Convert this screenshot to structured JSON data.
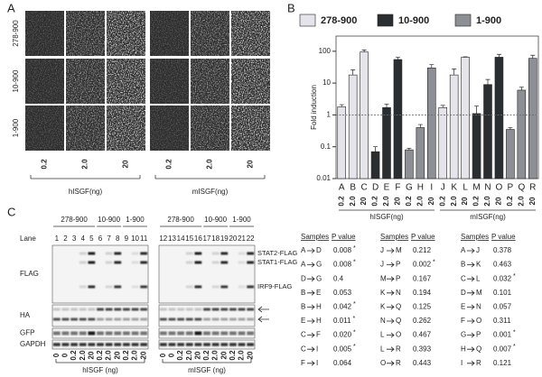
{
  "panel_a": {
    "label": "A",
    "rows": [
      "278-900",
      "10-900",
      "1-900"
    ],
    "doses": [
      "0.2",
      "2.0",
      "20"
    ],
    "groups": [
      "hISGF(ng)",
      "mISGF(ng)"
    ]
  },
  "chart_data": {
    "type": "bar",
    "label": "B",
    "ylabel": "Fold induction",
    "log_scale": true,
    "grid": false,
    "ylim": [
      0.01,
      300
    ],
    "yticks": [
      0.01,
      0.1,
      1,
      10,
      100
    ],
    "reference_line": 1,
    "categories": [
      "A",
      "B",
      "C",
      "D",
      "E",
      "F",
      "G",
      "H",
      "I",
      "J",
      "K",
      "L",
      "M",
      "N",
      "O",
      "P",
      "Q",
      "R"
    ],
    "dose_labels": [
      "0.2",
      "2.0",
      "20",
      "0.2",
      "2.0",
      "20",
      "0.2",
      "2.0",
      "20",
      "0.2",
      "2.0",
      "20",
      "0.2",
      "2.0",
      "20",
      "0.2",
      "2.0",
      "20"
    ],
    "groups": [
      "hISGF(ng)",
      "mISGF(ng)"
    ],
    "series": [
      {
        "name": "278-900",
        "color": "#e4e4ea",
        "values": [
          1.8,
          18,
          95,
          null,
          null,
          null,
          null,
          null,
          null,
          1.7,
          18,
          65,
          null,
          null,
          null,
          null,
          null,
          null
        ],
        "errors": [
          0.3,
          8,
          15,
          null,
          null,
          null,
          null,
          null,
          null,
          0.3,
          10,
          2,
          null,
          null,
          null,
          null,
          null,
          null
        ]
      },
      {
        "name": "10-900",
        "color": "#2b2e30",
        "values": [
          null,
          null,
          null,
          0.07,
          1.7,
          55,
          null,
          null,
          null,
          null,
          null,
          null,
          1.1,
          9,
          65,
          null,
          null,
          null
        ],
        "errors": [
          null,
          null,
          null,
          0.03,
          0.5,
          10,
          null,
          null,
          null,
          null,
          null,
          null,
          0.8,
          4,
          15,
          null,
          null,
          null
        ]
      },
      {
        "name": "1-900",
        "color": "#8c8f93",
        "values": [
          null,
          null,
          null,
          null,
          null,
          null,
          0.08,
          0.4,
          30,
          null,
          null,
          null,
          null,
          null,
          null,
          0.35,
          6,
          60
        ],
        "errors": [
          null,
          null,
          null,
          null,
          null,
          null,
          0.01,
          0.1,
          8,
          null,
          null,
          null,
          null,
          null,
          null,
          0.05,
          1.5,
          15
        ]
      }
    ]
  },
  "panel_c": {
    "label": "C",
    "lane_label": "Lane",
    "blots": [
      {
        "groups": [
          {
            "name": "278-900",
            "lanes": [
              1,
              2,
              3,
              4,
              5
            ]
          },
          {
            "name": "10-900",
            "lanes": [
              6,
              7,
              8
            ]
          },
          {
            "name": "1-900",
            "lanes": [
              9,
              10,
              11
            ]
          }
        ],
        "doses": [
          "0",
          "0",
          "0.2",
          "2.0",
          "20",
          "0.2",
          "2.0",
          "20",
          "0.2",
          "2.0",
          "20"
        ],
        "agent": "hISGF (ng)"
      },
      {
        "groups": [
          {
            "name": "278-900",
            "lanes": [
              12,
              13,
              14,
              15,
              16
            ]
          },
          {
            "name": "10-900",
            "lanes": [
              17,
              18,
              19
            ]
          },
          {
            "name": "1-900",
            "lanes": [
              20,
              21,
              22
            ]
          }
        ],
        "doses": [
          "0",
          "0",
          "0.2",
          "2.0",
          "20",
          "0.2",
          "2.0",
          "20",
          "0.2",
          "2.0",
          "20"
        ],
        "agent": "mISGF (ng)"
      }
    ],
    "rows": [
      "FLAG",
      "HA",
      "GFP",
      "GAPDH"
    ],
    "band_labels": [
      "STAT2-FLAG",
      "STAT1-FLAG",
      "IRF9-FLAG"
    ]
  },
  "table": {
    "headers": [
      "Samples",
      "P value"
    ],
    "columns": [
      [
        {
          "from": "A",
          "to": "D",
          "p": "0.008",
          "mark": "*"
        },
        {
          "from": "A",
          "to": "G",
          "p": "0.008",
          "mark": "*"
        },
        {
          "from": "D",
          "to": "G",
          "p": "0.4"
        },
        {
          "from": "B",
          "to": "E",
          "p": "0.053"
        },
        {
          "from": "B",
          "to": "H",
          "p": "0.042",
          "mark": "*"
        },
        {
          "from": "E",
          "to": "H",
          "p": "0.011",
          "mark": "*"
        },
        {
          "from": "C",
          "to": "F",
          "p": "0.020",
          "mark": "*"
        },
        {
          "from": "C",
          "to": "I",
          "p": "0.005",
          "mark": "*"
        },
        {
          "from": "F",
          "to": "I",
          "p": "0.064"
        }
      ],
      [
        {
          "from": "J",
          "to": "M",
          "p": "0.212"
        },
        {
          "from": "J",
          "to": "P",
          "p": "0.002",
          "mark": "*"
        },
        {
          "from": "M",
          "to": "P",
          "p": "0.167"
        },
        {
          "from": "K",
          "to": "N",
          "p": "0.194"
        },
        {
          "from": "K",
          "to": "Q",
          "p": "0.125"
        },
        {
          "from": "N",
          "to": "Q",
          "p": "0.262"
        },
        {
          "from": "L",
          "to": "O",
          "p": "0.467"
        },
        {
          "from": "L",
          "to": "R",
          "p": "0.393"
        },
        {
          "from": "O",
          "to": "R",
          "p": "0.443"
        }
      ],
      [
        {
          "from": "A",
          "to": "J",
          "p": "0.378"
        },
        {
          "from": "B",
          "to": "K",
          "p": "0.463"
        },
        {
          "from": "C",
          "to": "L",
          "p": "0.032",
          "mark": "*"
        },
        {
          "from": "D",
          "to": "M",
          "p": "0.101"
        },
        {
          "from": "E",
          "to": "N",
          "p": "0.057"
        },
        {
          "from": "F",
          "to": "O",
          "p": "0.311"
        },
        {
          "from": "G",
          "to": "P",
          "p": "0.001",
          "mark": "*"
        },
        {
          "from": "H",
          "to": "Q",
          "p": "0.007",
          "mark": "*"
        },
        {
          "from": "I",
          "to": "R",
          "p": "0.121"
        }
      ]
    ]
  }
}
